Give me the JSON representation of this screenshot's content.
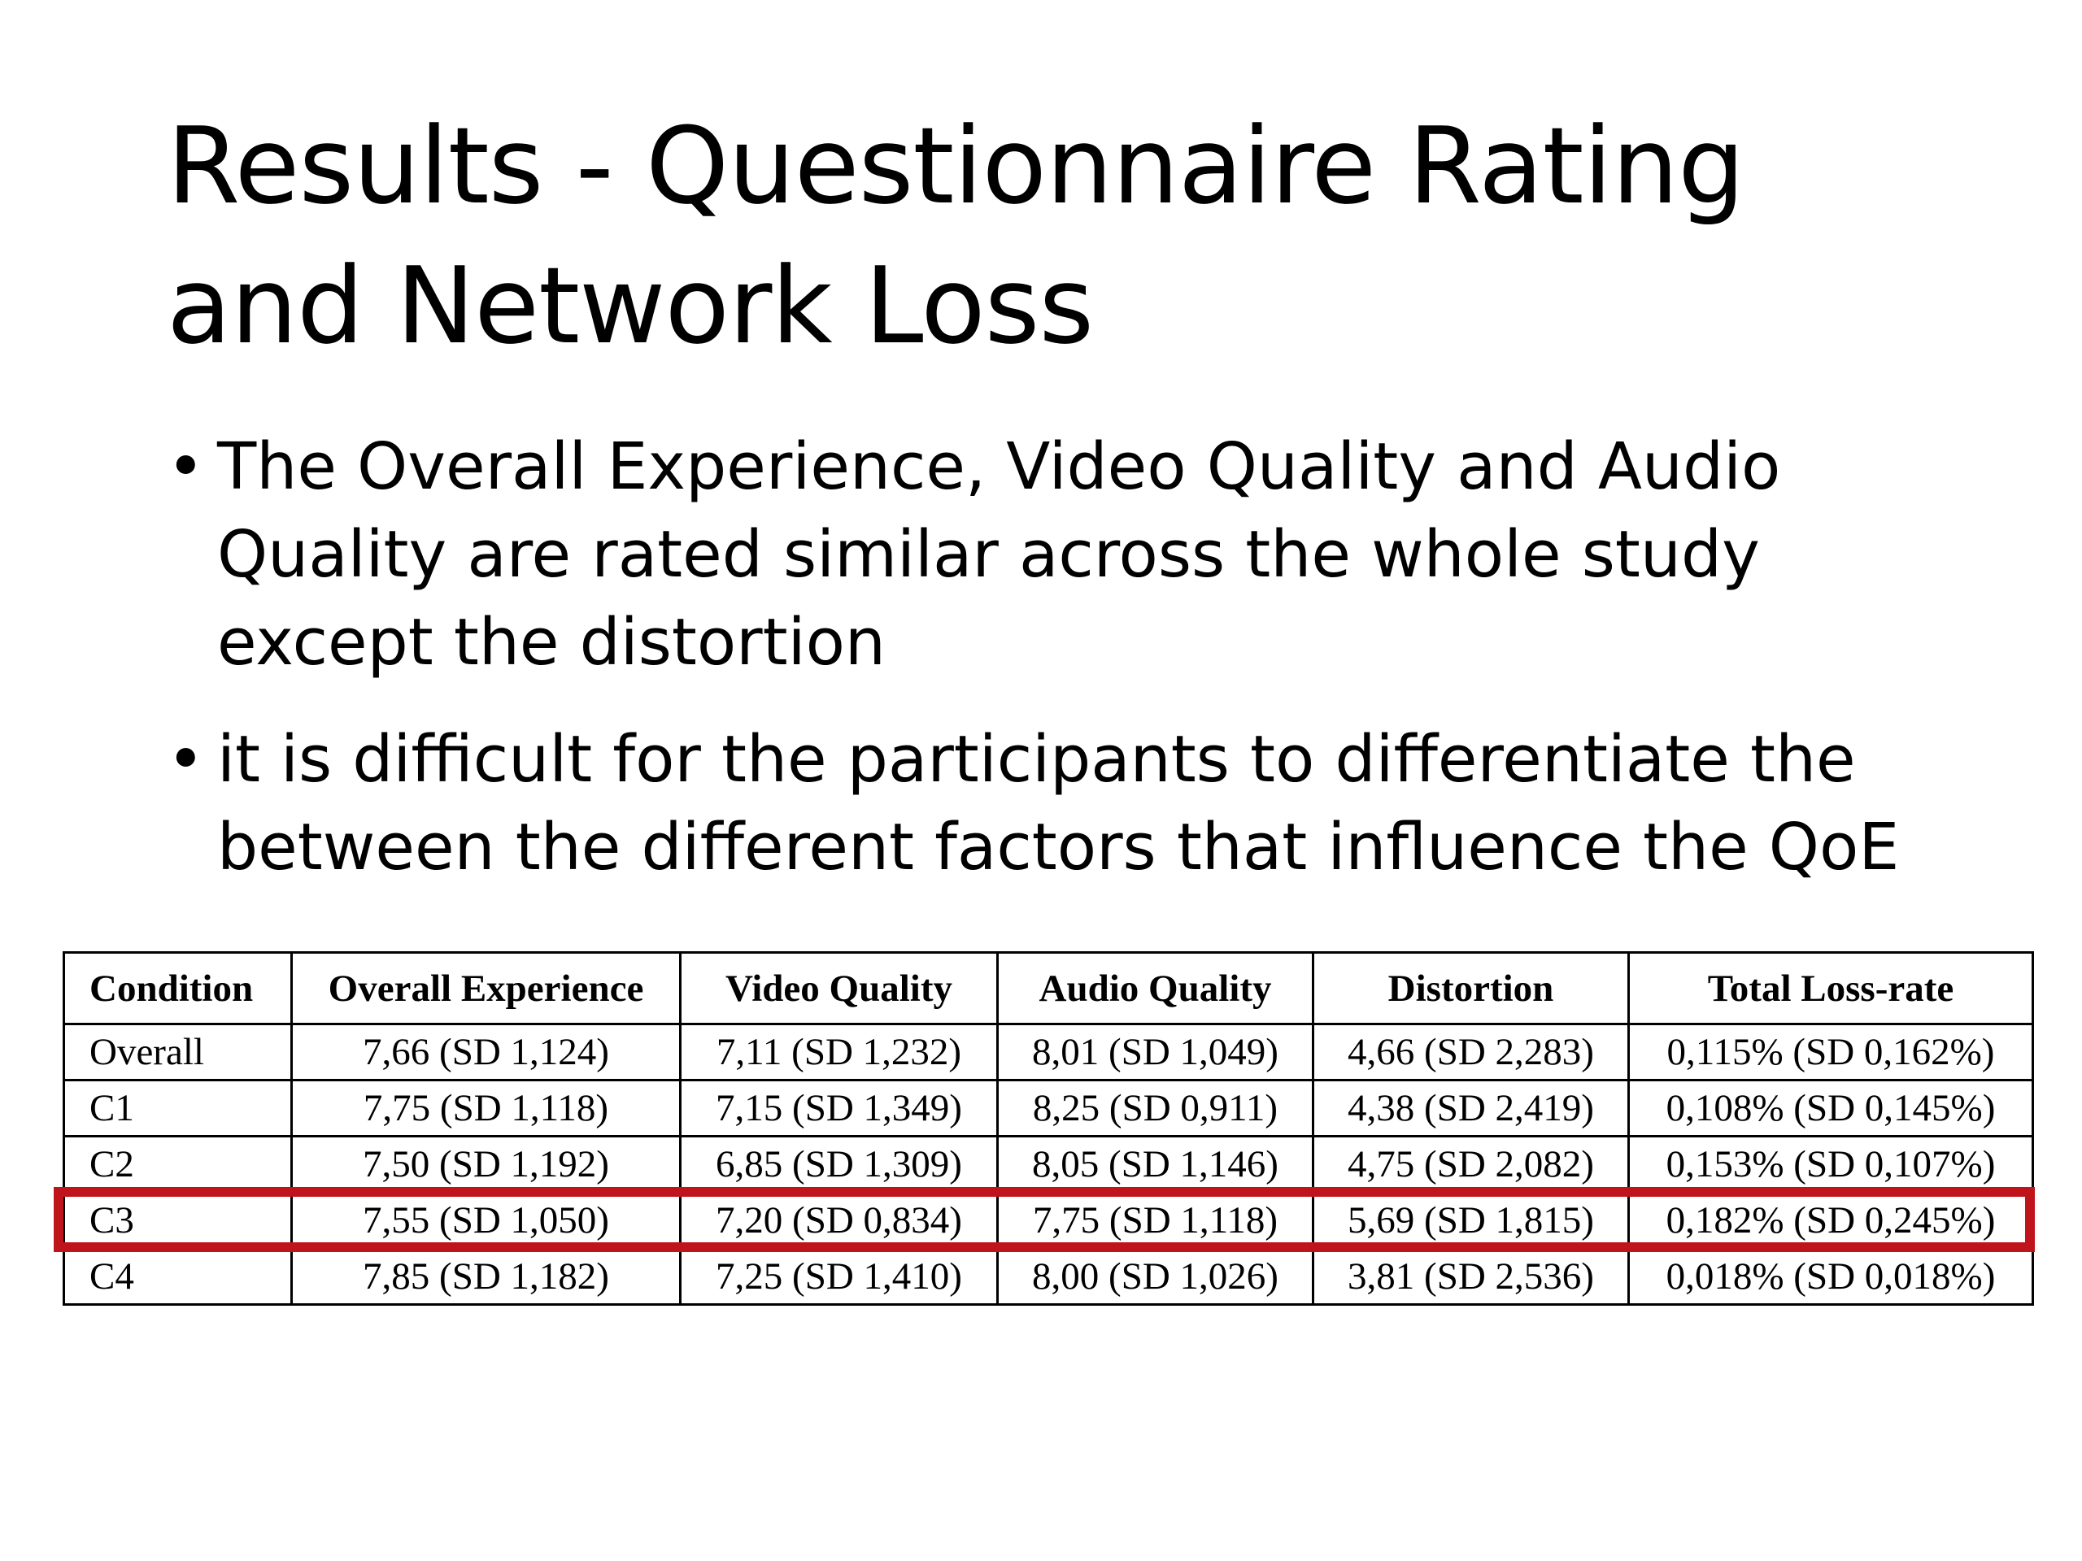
{
  "title": {
    "line1": "Results - Questionnaire Rating",
    "line2": "and Network Loss"
  },
  "bullets": [
    {
      "marker": "•",
      "lines": [
        "The Overall Experience, Video Quality and Audio",
        "Quality are rated similar across the whole study",
        "except the distortion"
      ]
    },
    {
      "marker": "•",
      "lines": [
        " it is difficult for the participants to differentiate the",
        "between the different factors that influence the QoE"
      ]
    }
  ],
  "table": {
    "headers": [
      "Condition",
      "Overall Experience",
      "Video Quality",
      "Audio Quality",
      "Distortion",
      "Total Loss-rate"
    ],
    "rows": [
      [
        "Overall",
        "7,66 (SD 1,124)",
        "7,11 (SD 1,232)",
        "8,01 (SD 1,049)",
        "4,66 (SD 2,283)",
        "0,115% (SD 0,162%)"
      ],
      [
        "C1",
        "7,75 (SD 1,118)",
        "7,15 (SD 1,349)",
        "8,25 (SD 0,911)",
        "4,38 (SD 2,419)",
        "0,108% (SD 0,145%)"
      ],
      [
        "C2",
        "7,50 (SD 1,192)",
        "6,85 (SD 1,309)",
        "8,05 (SD 1,146)",
        "4,75 (SD 2,082)",
        "0,153% (SD 0,107%)"
      ],
      [
        "C3",
        "7,55 (SD 1,050)",
        "7,20 (SD 0,834)",
        "7,75 (SD 1,118)",
        "5,69 (SD 1,815)",
        "0,182% (SD 0,245%)"
      ],
      [
        "C4",
        "7,85 (SD 1,182)",
        "7,25 (SD 1,410)",
        "8,00 (SD 1,026)",
        "3,81 (SD 2,536)",
        "0,018% (SD 0,018%)"
      ]
    ],
    "highlighted_row": "C3",
    "highlight_color": "#c0141c"
  }
}
